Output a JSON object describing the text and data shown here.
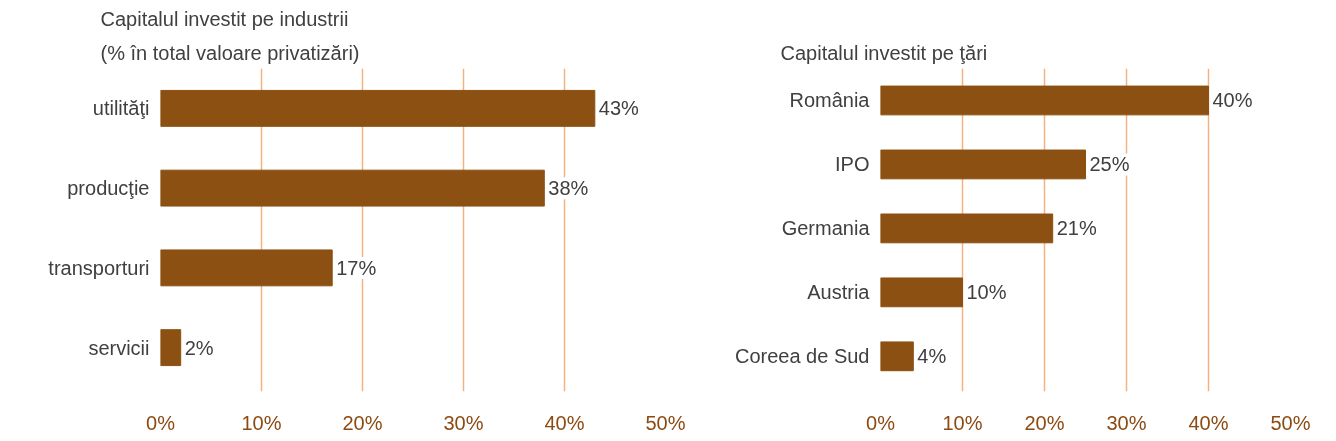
{
  "chart_data": [
    {
      "type": "bar",
      "orientation": "horizontal",
      "title": "Capitalul investit pe industrii",
      "subtitle": "(% în total valoare privatizări)",
      "categories": [
        "utilităţi",
        "producţie",
        "transporturi",
        "servicii"
      ],
      "values": [
        43,
        38,
        17,
        2
      ],
      "value_labels": [
        "43%",
        "38%",
        "17%",
        "2%"
      ],
      "color": "#8b5012",
      "xlim": [
        0,
        50
      ],
      "xticks": [
        {
          "value": 0,
          "label": "0%"
        },
        {
          "value": 10,
          "label": "10%"
        },
        {
          "value": 20,
          "label": "20%"
        },
        {
          "value": 30,
          "label": "30%"
        },
        {
          "value": 40,
          "label": "40%"
        },
        {
          "value": 50,
          "label": "50%"
        }
      ],
      "grid": "x"
    },
    {
      "type": "bar",
      "orientation": "horizontal",
      "title": "Capitalul investit pe ţări",
      "categories": [
        "România",
        "IPO",
        "Germania",
        "Austria",
        "Coreea de Sud"
      ],
      "values": [
        40,
        25,
        21,
        10,
        4
      ],
      "value_labels": [
        "40%",
        "25%",
        "21%",
        "10%",
        "4%"
      ],
      "color": "#8b5012",
      "xlim": [
        0,
        50
      ],
      "xticks": [
        {
          "value": 0,
          "label": "0%"
        },
        {
          "value": 10,
          "label": "10%"
        },
        {
          "value": 20,
          "label": "20%"
        },
        {
          "value": 30,
          "label": "30%"
        },
        {
          "value": 40,
          "label": "40%"
        },
        {
          "value": 50,
          "label": "50%"
        }
      ],
      "grid": "x"
    }
  ]
}
